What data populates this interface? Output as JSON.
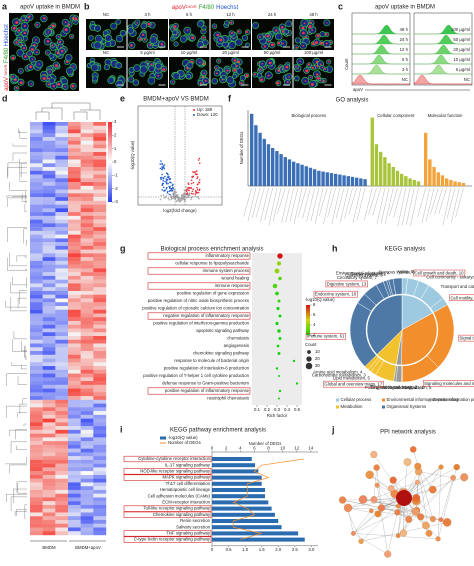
{
  "panels": {
    "a": {
      "label": "a",
      "title": "apoV uptake in BMDM",
      "stain": [
        "apoV",
        "DiO/R",
        "F4/80",
        "Hoechst"
      ]
    },
    "b": {
      "label": "b",
      "title": [
        "apoV",
        "DiO/R",
        "F4/80",
        "Hoechst"
      ],
      "time": [
        "NC",
        "3 h",
        "6 h",
        "12 h",
        "24 h",
        "48 h"
      ],
      "dose": [
        "NC",
        "5 μg/ml",
        "10 μg/ml",
        "20 μg/ml",
        "50 μg/ml",
        "100 μg/ml"
      ]
    },
    "c": {
      "label": "c",
      "title": "apoV uptake in BMDM",
      "time": [
        "48 h",
        "24 h",
        "12 h",
        "6 h",
        "3 h",
        "NC"
      ],
      "dose": [
        "100 μg/ml",
        "50 μg/ml",
        "20 μg/ml",
        "10 μg/ml",
        "5 μg/ml",
        "NC"
      ],
      "ylabel": "Count",
      "xlabel": "apoV"
    },
    "d": {
      "label": "d",
      "colorbar_ticks": [
        3,
        2,
        1,
        0,
        -1,
        -2,
        -3
      ],
      "columns": [
        "BMDM",
        "BMDM+apoV"
      ]
    },
    "e": {
      "label": "e",
      "title": "BMDM+apoV VS BMDM",
      "legend": [
        "Up: 188",
        "Down: 120"
      ],
      "ylabel": "-log10(Q value)",
      "xlabel": "log2(fold change)"
    },
    "f": {
      "label": "f",
      "title": "GO analysis",
      "ylabel": "Number of DEGs",
      "ylim": [
        0,
        100
      ],
      "groups": [
        {
          "name": "Biological process",
          "color": "#3b6fb6",
          "values": [
            95,
            80,
            70,
            62,
            55,
            50,
            46,
            42,
            38,
            35,
            32,
            30,
            28,
            26,
            24,
            22,
            20,
            19,
            18,
            17,
            16,
            15,
            14,
            13,
            12,
            11,
            10,
            9
          ]
        },
        {
          "name": "Cellular component",
          "color": "#a8c43a",
          "values": [
            90,
            55,
            45,
            38,
            30,
            25,
            20,
            16,
            13,
            10,
            8,
            6
          ]
        },
        {
          "name": "Molecular function",
          "color": "#f2a33a",
          "values": [
            70,
            35,
            25,
            18,
            14,
            10,
            8,
            6,
            5,
            4
          ]
        }
      ]
    },
    "g": {
      "label": "g",
      "title": "Biological process enrichment analysis",
      "terms": [
        "inflammatory response",
        "cellular response to lipopolysaccharide",
        "immune system process",
        "wound healing",
        "immune response",
        "positive regulation of gene expression",
        "positive regulation of nitric oxide biosynthetic process",
        "positive regulation of cytosolic calcium ion concentration",
        "negative regulation of inflammatory response",
        "positive regulation of interferon-gamma production",
        "apoptotic signaling pathway",
        "chemotaxis",
        "angiogenesis",
        "chemokine signaling pathway",
        "response to molecule of bacterial origin",
        "positive regulation of interleukin-6 production",
        "positive regulation of T-helper 1 cell cytokine production",
        "defense response to Gram-positive bacterium",
        "positive regulation of inflammatory response",
        "neutrophil chemotaxis"
      ],
      "highlight": [
        0,
        2,
        4,
        8,
        18
      ],
      "rich_factor": [
        0.33,
        0.32,
        0.3,
        0.33,
        0.28,
        0.3,
        0.32,
        0.31,
        0.33,
        0.3,
        0.32,
        0.33,
        0.31,
        0.32,
        0.47,
        0.3,
        0.32,
        0.5,
        0.33,
        0.32
      ],
      "neg_log10_q": [
        8,
        4,
        4,
        3,
        3,
        2.5,
        2.5,
        2,
        2,
        2,
        2,
        2,
        2,
        2,
        1.8,
        1.8,
        1.8,
        1.7,
        1.7,
        1.6
      ],
      "count": [
        20,
        12,
        16,
        8,
        14,
        10,
        6,
        7,
        6,
        7,
        8,
        6,
        5,
        6,
        4,
        4,
        3,
        4,
        4,
        3
      ],
      "xlabel": "Rich factor",
      "xlim": [
        0.05,
        0.55
      ],
      "xticks": [
        0.1,
        0.2,
        0.3,
        0.4,
        0.5
      ],
      "color_legend_title": "-log10(Q value)",
      "color_ticks": [
        8,
        6,
        4,
        2
      ],
      "count_legend_title": "Count",
      "count_ticks": [
        10,
        20,
        30
      ]
    },
    "h": {
      "label": "h",
      "title": "KEGG analysis",
      "categories": [
        {
          "name": "Cellular process",
          "color": "#9ecae1",
          "segments": [
            {
              "label": "Aging, 5",
              "value": 5
            },
            {
              "label": "Cell growth and death, 10",
              "value": 10
            },
            {
              "label": "Cell community - eukaryotes, 10",
              "value": 10
            },
            {
              "label": "Transport and catabolism, 17",
              "value": 17
            },
            {
              "label": "Cell motility, 7",
              "value": 7
            }
          ]
        },
        {
          "name": "Environmental information processing",
          "color": "#f28e2b",
          "segments": [
            {
              "label": "Signal transduction, 60",
              "value": 60
            },
            {
              "label": "Signaling molecules and interaction, 35",
              "value": 35
            },
            {
              "label": "Membrane transport, 1",
              "value": 1
            }
          ]
        },
        {
          "name": "Genetic information processing",
          "color": "#9a9a9a",
          "segments": [
            {
              "label": "Folding, sorting and degradation, 5",
              "value": 5
            },
            {
              "label": "Replication and repair, 2",
              "value": 2
            }
          ]
        },
        {
          "name": "Metabolism",
          "color": "#f2c12e",
          "segments": [
            {
              "label": "Global and overview maps, 17",
              "value": 17
            },
            {
              "label": "Lipid metabolism, 5",
              "value": 5
            },
            {
              "label": "Carbohydrate metabolism, 3",
              "value": 3
            },
            {
              "label": "Amino acid metabolism, 4",
              "value": 4
            }
          ]
        },
        {
          "name": "Organismal Systems",
          "color": "#4e79a7",
          "segments": [
            {
              "label": "Immune system, 61",
              "value": 61
            },
            {
              "label": "Endocrine system, 10",
              "value": 10
            },
            {
              "label": "Digestive system, 13",
              "value": 13
            },
            {
              "label": "Circulatory system, 7",
              "value": 7
            },
            {
              "label": "Excretory system, 3",
              "value": 3
            },
            {
              "label": "Sensory system, 2",
              "value": 2
            },
            {
              "label": "Environmental adaptation, 4",
              "value": 4
            },
            {
              "label": "Nervous system, 8",
              "value": 8
            }
          ]
        }
      ],
      "highlight": [
        "Cell growth and death, 10",
        "Cell motility, 7",
        "Signal transduction, 60",
        "Signaling molecules and interaction, 35",
        "Global and overview maps, 17",
        "Immune system, 61",
        "Endocrine system, 10",
        "Digestive system, 13"
      ]
    },
    "i": {
      "label": "i",
      "title": "KEGG pathway enrichment analysis",
      "legend": [
        "-log10(Q value)",
        "Number of DEGs"
      ],
      "top_axis_label": "Number of DEGs",
      "terms": [
        "Cytokine-cytokine receptor interaction",
        "IL-17 signaling pathway",
        "NOD-like receptor signaling pathway",
        "MAPK signaling pathway",
        "Th17 cell differentiation",
        "Hematopoietic cell lineage",
        "Cell adhesion molecules (CAMs)",
        "ECM-receptor interaction",
        "Toll-like receptor signaling pathway",
        "Chemokine signaling pathway",
        "Renin secretion",
        "Salivary secretion",
        "TNF signaling pathway",
        "C-type lectin receptor signaling pathway"
      ],
      "highlight": [
        0,
        2,
        3,
        8,
        9,
        12,
        13
      ],
      "neg_log10_q": [
        1.2,
        1.3,
        1.4,
        1.5,
        1.5,
        1.6,
        1.6,
        1.7,
        1.8,
        1.9,
        2.0,
        2.1,
        2.6,
        2.8
      ],
      "degs": [
        13,
        7,
        6,
        8,
        5,
        5,
        5,
        3,
        5,
        6,
        3,
        3,
        7,
        4
      ],
      "xlim": [
        0,
        3.2
      ],
      "xticks": [
        0,
        0.5,
        {
          "value": 1,
          "label": "1.0"
        },
        1.5,
        {
          "value": 2,
          "label": "2.0"
        },
        2.5,
        {
          "value": 3,
          "label": "3.0"
        }
      ],
      "x2lim": [
        0,
        15
      ],
      "x2ticks": [
        0,
        2,
        4,
        6,
        8,
        10,
        12,
        14
      ]
    },
    "j": {
      "label": "j",
      "title": "PPI network analysis"
    }
  }
}
